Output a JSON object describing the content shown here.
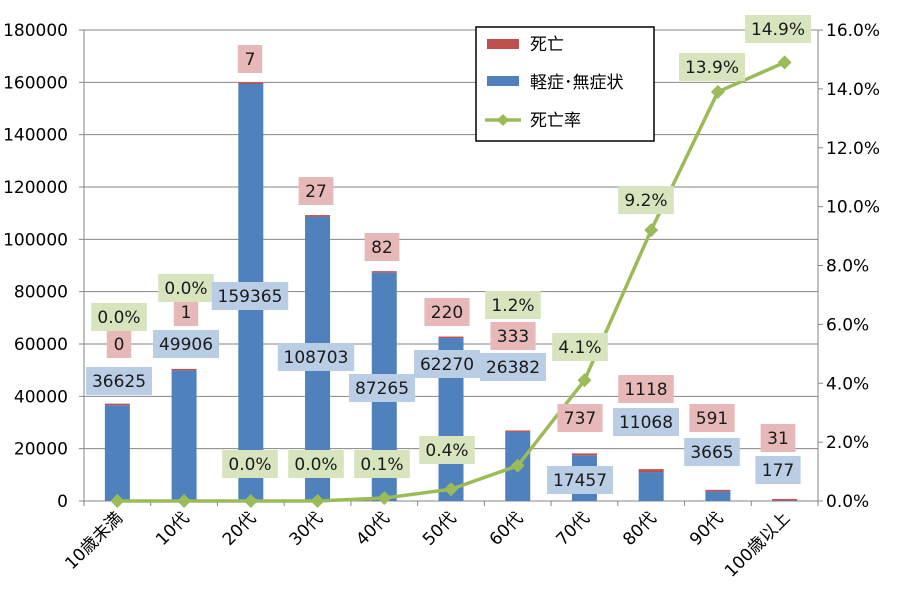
{
  "colors": {
    "death": "#C0504D",
    "mild": "#4F81BD",
    "rate": "#9BBB59",
    "death_label_bg": "#E6B9B8",
    "mild_label_bg": "#B9CDE5",
    "rate_label_bg": "#D7E4BD",
    "grid": "#868686"
  },
  "chart_data": {
    "type": "bar",
    "stacked": true,
    "categories": [
      "10歳未満",
      "10代",
      "20代",
      "30代",
      "40代",
      "50代",
      "60代",
      "70代",
      "80代",
      "90代",
      "100歳以上"
    ],
    "series": [
      {
        "name": "軽症･無症状",
        "axis": "left",
        "values": [
          36625,
          49906,
          159365,
          108703,
          87265,
          62270,
          26382,
          17457,
          11068,
          3665,
          177
        ]
      },
      {
        "name": "死亡",
        "axis": "left",
        "values": [
          0,
          1,
          7,
          27,
          82,
          220,
          333,
          737,
          1118,
          591,
          31
        ]
      },
      {
        "name": "死亡率",
        "type": "line",
        "axis": "right",
        "values": [
          0.0,
          0.0,
          0.0,
          0.0,
          0.1,
          0.4,
          1.2,
          4.1,
          9.2,
          13.9,
          14.9
        ],
        "labels": [
          "0.0%",
          "0.0%",
          "0.0%",
          "0.0%",
          "0.1%",
          "0.4%",
          "1.2%",
          "4.1%",
          "9.2%",
          "13.9%",
          "14.9%"
        ]
      }
    ],
    "ylim": [
      0,
      180000
    ],
    "yticks": [
      "0",
      "20000",
      "40000",
      "60000",
      "80000",
      "100000",
      "120000",
      "140000",
      "160000",
      "180000"
    ],
    "y2lim": [
      0,
      16
    ],
    "y2ticks": [
      "0.0%",
      "2.0%",
      "4.0%",
      "6.0%",
      "8.0%",
      "10.0%",
      "12.0%",
      "14.0%",
      "16.0%"
    ],
    "grid": true,
    "legend": [
      "死亡",
      "軽症･無症状",
      "死亡率"
    ],
    "legend_position": "top-right"
  }
}
